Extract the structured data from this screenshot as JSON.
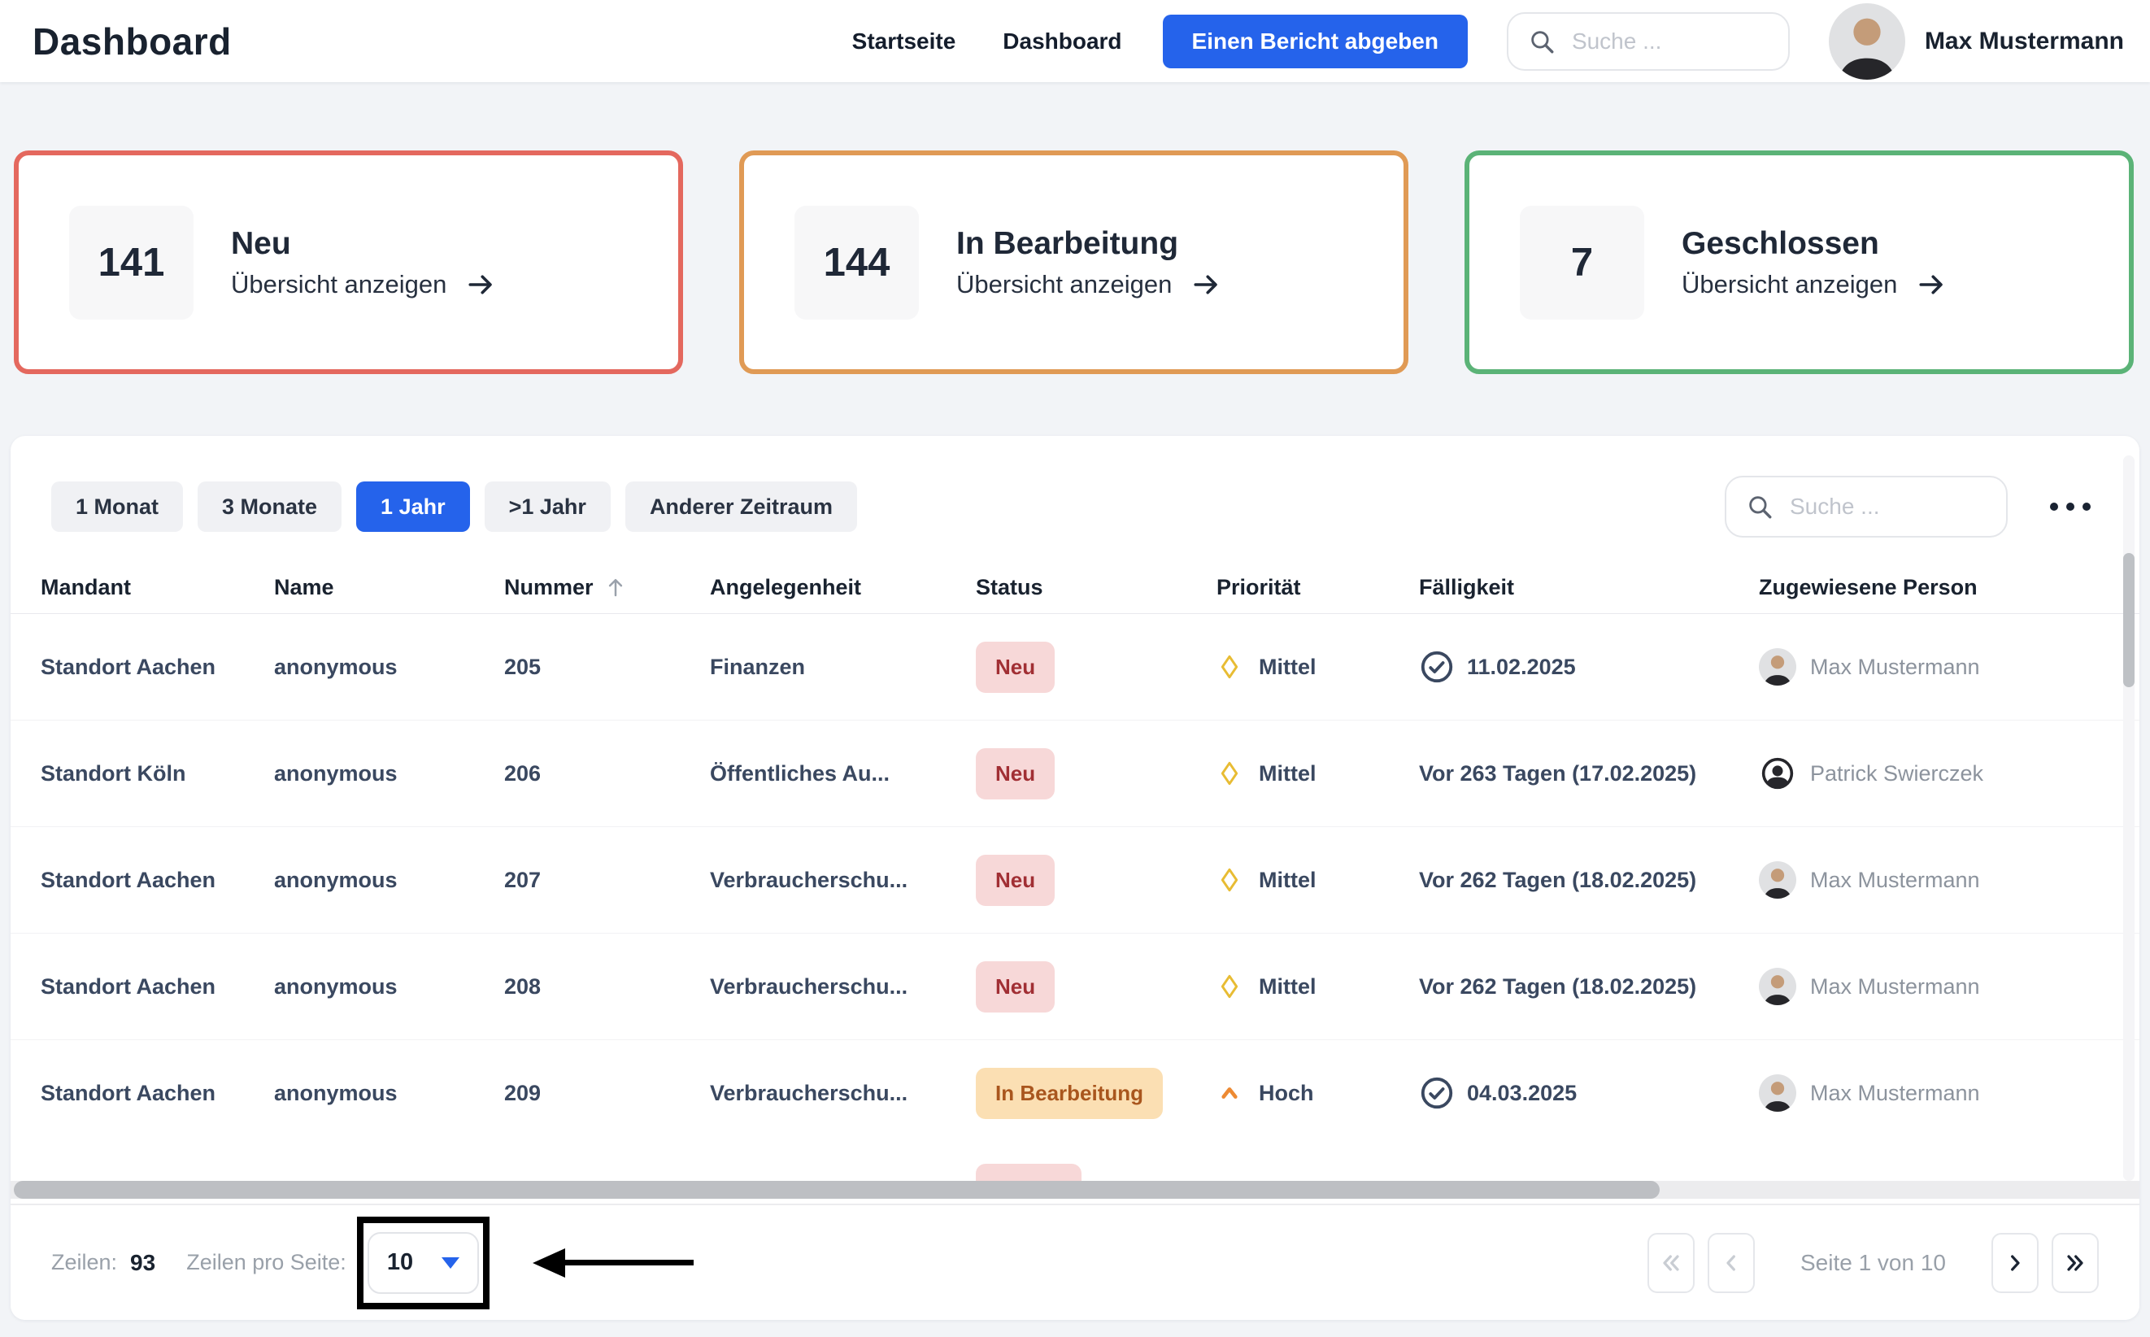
{
  "header": {
    "title": "Dashboard",
    "nav_items": [
      {
        "label": "Startseite"
      },
      {
        "label": "Dashboard"
      }
    ],
    "report_button_label": "Einen Bericht abgeben",
    "search_placeholder": "Suche ...",
    "user_name": "Max Mustermann"
  },
  "stat_cards": [
    {
      "count": "141",
      "title": "Neu",
      "link_label": "Übersicht anzeigen",
      "border_color": "#e4685e"
    },
    {
      "count": "144",
      "title": "In Bearbeitung",
      "link_label": "Übersicht anzeigen",
      "border_color": "#e09a55"
    },
    {
      "count": "7",
      "title": "Geschlossen",
      "link_label": "Übersicht anzeigen",
      "border_color": "#5bb377"
    }
  ],
  "toolbar": {
    "time_filters": [
      "1 Monat",
      "3 Monate",
      "1 Jahr",
      ">1 Jahr",
      "Anderer Zeitraum"
    ],
    "active_filter": "1 Jahr",
    "search_placeholder": "Suche ..."
  },
  "table": {
    "columns": [
      {
        "label": "Mandant"
      },
      {
        "label": "Name"
      },
      {
        "label": "Nummer",
        "sorted": "asc"
      },
      {
        "label": "Angelegenheit"
      },
      {
        "label": "Status"
      },
      {
        "label": "Priorität"
      },
      {
        "label": "Fälligkeit"
      },
      {
        "label": "Zugewiesene Person"
      }
    ],
    "rows": [
      {
        "mandant": "Standort Aachen",
        "name": "anonymous",
        "nummer": "205",
        "angelegenheit": "Finanzen",
        "status": "Neu",
        "prioritaet": "Mittel",
        "faelligkeit": "11.02.2025",
        "faelligkeit_icon": true,
        "person": "Max Mustermann",
        "avatar": "photo"
      },
      {
        "mandant": "Standort Köln",
        "name": "anonymous",
        "nummer": "206",
        "angelegenheit": "Öffentliches Au...",
        "status": "Neu",
        "prioritaet": "Mittel",
        "faelligkeit": "Vor 263 Tagen (17.02.2025)",
        "faelligkeit_icon": false,
        "person": "Patrick Swierczek",
        "avatar": "icon"
      },
      {
        "mandant": "Standort Aachen",
        "name": "anonymous",
        "nummer": "207",
        "angelegenheit": "Verbraucherschu...",
        "status": "Neu",
        "prioritaet": "Mittel",
        "faelligkeit": "Vor 262 Tagen (18.02.2025)",
        "faelligkeit_icon": false,
        "person": "Max Mustermann",
        "avatar": "photo"
      },
      {
        "mandant": "Standort Aachen",
        "name": "anonymous",
        "nummer": "208",
        "angelegenheit": "Verbraucherschu...",
        "status": "Neu",
        "prioritaet": "Mittel",
        "faelligkeit": "Vor 262 Tagen (18.02.2025)",
        "faelligkeit_icon": false,
        "person": "Max Mustermann",
        "avatar": "photo"
      },
      {
        "mandant": "Standort Aachen",
        "name": "anonymous",
        "nummer": "209",
        "angelegenheit": "Verbraucherschu...",
        "status": "In Bearbeitung",
        "prioritaet": "Hoch",
        "faelligkeit": "04.03.2025",
        "faelligkeit_icon": true,
        "person": "Max Mustermann",
        "avatar": "photo"
      }
    ]
  },
  "pagination": {
    "rows_label": "Zeilen:",
    "rows_count": "93",
    "per_page_label": "Zeilen pro Seite:",
    "per_page_value": "10",
    "page_label": "Seite 1 von 10"
  },
  "colors": {
    "accent_blue": "#2563eb",
    "card_red": "#e4685e",
    "card_orange": "#e09a55",
    "card_green": "#5bb377",
    "badge_neu_bg": "#f7d8d8",
    "badge_neu_text": "#a12f34",
    "badge_bearbeitung_bg": "#fbdfb3",
    "badge_bearbeitung_text": "#a9561e",
    "priority_mittel": "#e8bc33",
    "priority_hoch": "#ed8a33"
  }
}
